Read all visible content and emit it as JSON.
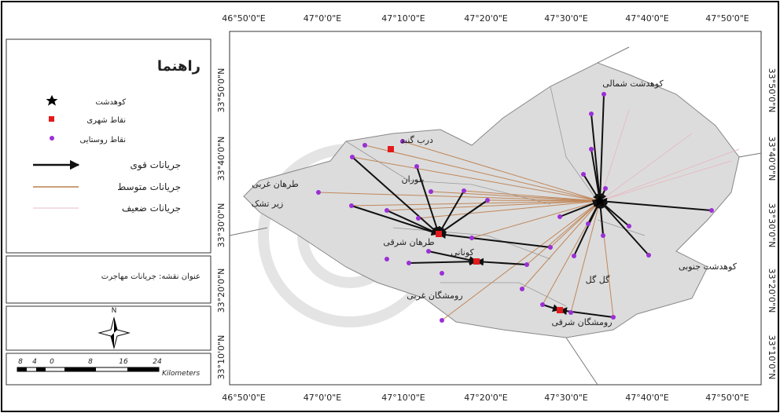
{
  "legend": {
    "title": "راهنما",
    "items": [
      "کوهدشت",
      "نقاط شهری",
      "نقاط روستایی",
      "جریانات قوی",
      "جریانات متوسط",
      "جریانات ضعیف"
    ]
  },
  "map_title": "عنوان نقشه: جریانات مهاجرت",
  "north": "N",
  "scale": {
    "labels": [
      "8",
      "4",
      "0",
      "8",
      "16",
      "24"
    ],
    "unit": "Kilometers"
  },
  "longitude_labels": [
    "46°50'0\"E",
    "47°0'0\"E",
    "47°10'0\"E",
    "47°20'0\"E",
    "47°30'0\"E",
    "47°40'0\"E",
    "47°50'0\"E"
  ],
  "latitude_labels": [
    "33°50'0\"N",
    "33°40'0\"N",
    "33°30'0\"N",
    "33°20'0\"N",
    "33°10'0\"N"
  ],
  "place_labels": [
    "کوهدشت شمالی",
    "درب گنبد",
    "بلوران",
    "طرهان غربی",
    "زیر تشک",
    "طرهان شرقی",
    "کونانی",
    "کوهدشت جنوبی",
    "گل گل",
    "رومشگان غربی",
    "رومشگان شرقی"
  ]
}
